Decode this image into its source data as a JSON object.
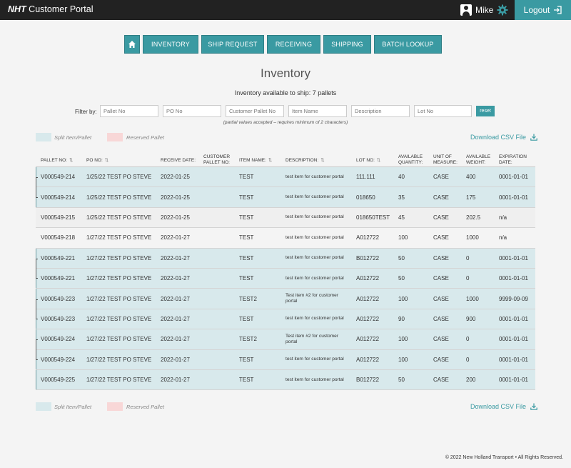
{
  "header": {
    "brand_bold": "NHT",
    "brand_rest": " Customer Portal",
    "user_icon": "user-icon",
    "username": "Mike",
    "settings_icon": "gear-icon",
    "logout_label": "Logout",
    "logout_icon": "logout-icon"
  },
  "nav": {
    "home_icon": "home-icon",
    "items": [
      "INVENTORY",
      "SHIP REQUEST",
      "RECEIVING",
      "SHIPPING",
      "BATCH LOOKUP"
    ]
  },
  "page": {
    "title": "Inventory",
    "available": "Inventory available to ship: 7 pallets"
  },
  "filter": {
    "label": "Filter by:",
    "placeholders": [
      "Pallet No",
      "PO No",
      "Customer Pallet No",
      "Item Name",
      "Description",
      "Lot No"
    ],
    "reset_label": "reset",
    "note": "(partial values accepted – requires minimum of 2 characters)"
  },
  "legend": {
    "split_label": "Split Item/Pallet",
    "reserved_label": "Reserved Pallet",
    "split_color": "#d8e9ec",
    "reserved_color": "#f8d7d7"
  },
  "download_label": "Download CSV File",
  "download_icon": "download-icon",
  "table": {
    "columns": [
      "PALLET NO:",
      "PO NO:",
      "RECEIVE DATE:",
      "CUSTOMER PALLET NO:",
      "ITEM NAME:",
      "DESCRIPTION:",
      "LOT NO:",
      "AVAILABLE QUANTITY:",
      "UNIT OF MEASURE:",
      "AVAILABLE WEIGHT:",
      "EXPIRATION DATE:"
    ],
    "rows": [
      {
        "pallet": "V000549-214",
        "po": "1/25/22 TEST PO STEVE",
        "date": "2022-01-25",
        "cust": "",
        "item": "TEST",
        "desc": "test item for customer portal",
        "lot": "111.111",
        "qty": "40",
        "uom": "CASE",
        "weight": "400",
        "exp": "0001-01-01"
      },
      {
        "pallet": "V000549-214",
        "po": "1/25/22 TEST PO STEVE",
        "date": "2022-01-25",
        "cust": "",
        "item": "TEST",
        "desc": "test item for customer portal",
        "lot": "018650",
        "qty": "35",
        "uom": "CASE",
        "weight": "175",
        "exp": "0001-01-01"
      },
      {
        "pallet": "V000549-215",
        "po": "1/25/22 TEST PO STEVE",
        "date": "2022-01-25",
        "cust": "",
        "item": "TEST",
        "desc": "test item for customer portal",
        "lot": "018650TEST",
        "qty": "45",
        "uom": "CASE",
        "weight": "202.5",
        "exp": "n/a"
      },
      {
        "pallet": "V000549-218",
        "po": "1/27/22 TEST PO STEVE",
        "date": "2022-01-27",
        "cust": "",
        "item": "TEST",
        "desc": "test item for customer portal",
        "lot": "A012722",
        "qty": "100",
        "uom": "CASE",
        "weight": "1000",
        "exp": "n/a"
      },
      {
        "pallet": "V000549-221",
        "po": "1/27/22 TEST PO STEVE",
        "date": "2022-01-27",
        "cust": "",
        "item": "TEST",
        "desc": "test item for customer portal",
        "lot": "B012722",
        "qty": "50",
        "uom": "CASE",
        "weight": "0",
        "exp": "0001-01-01"
      },
      {
        "pallet": "V000549-221",
        "po": "1/27/22 TEST PO STEVE",
        "date": "2022-01-27",
        "cust": "",
        "item": "TEST",
        "desc": "test item for customer portal",
        "lot": "A012722",
        "qty": "50",
        "uom": "CASE",
        "weight": "0",
        "exp": "0001-01-01"
      },
      {
        "pallet": "V000549-223",
        "po": "1/27/22 TEST PO STEVE",
        "date": "2022-01-27",
        "cust": "",
        "item": "TEST2",
        "desc": "Test item #2 for customer portal",
        "lot": "A012722",
        "qty": "100",
        "uom": "CASE",
        "weight": "1000",
        "exp": "9999-09-09"
      },
      {
        "pallet": "V000549-223",
        "po": "1/27/22 TEST PO STEVE",
        "date": "2022-01-27",
        "cust": "",
        "item": "TEST",
        "desc": "test item for customer portal",
        "lot": "A012722",
        "qty": "90",
        "uom": "CASE",
        "weight": "900",
        "exp": "0001-01-01"
      },
      {
        "pallet": "V000549-224",
        "po": "1/27/22 TEST PO STEVE",
        "date": "2022-01-27",
        "cust": "",
        "item": "TEST2",
        "desc": "Test item #2 for customer portal",
        "lot": "A012722",
        "qty": "100",
        "uom": "CASE",
        "weight": "0",
        "exp": "0001-01-01"
      },
      {
        "pallet": "V000549-224",
        "po": "1/27/22 TEST PO STEVE",
        "date": "2022-01-27",
        "cust": "",
        "item": "TEST",
        "desc": "test item for customer portal",
        "lot": "A012722",
        "qty": "100",
        "uom": "CASE",
        "weight": "0",
        "exp": "0001-01-01"
      },
      {
        "pallet": "V000549-225",
        "po": "1/27/22 TEST PO STEVE",
        "date": "2022-01-27",
        "cust": "",
        "item": "TEST",
        "desc": "test item for customer portal",
        "lot": "B012722",
        "qty": "50",
        "uom": "CASE",
        "weight": "200",
        "exp": "0001-01-01"
      }
    ]
  },
  "footer": "© 2022 New Holland Transport • All Rights Reserved."
}
